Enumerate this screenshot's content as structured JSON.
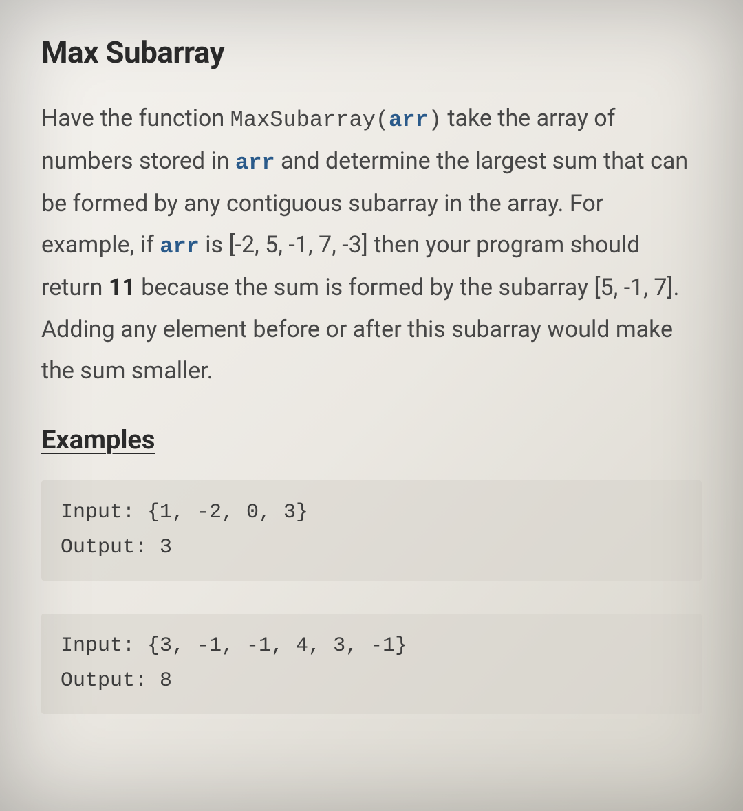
{
  "title": "Max Subarray",
  "description": {
    "pre1": "Have the function ",
    "func_name": "MaxSubarray",
    "func_paren_open": "(",
    "func_arg": "arr",
    "func_paren_close": ")",
    "post1": " take the array of numbers stored in ",
    "arr1": "arr",
    "post2": " and determine the largest sum that can be formed by any contiguous subarray in the array. For example, if ",
    "arr2": "arr",
    "post3": " is [-2, 5, -1, 7, -3] then your program should return ",
    "bold_result": "11",
    "post4": " because the sum is formed by the subarray [5, -1, 7]. Adding any element before or after this subarray would make the sum smaller."
  },
  "examples_heading": "Examples",
  "examples": [
    {
      "input": "Input: {1, -2, 0, 3}",
      "output": "Output: 3"
    },
    {
      "input": "Input: {3, -1, -1, 4, 3, -1}",
      "output": "Output: 8"
    }
  ],
  "colors": {
    "background_start": "#f5f3ef",
    "background_end": "#d8d5cc",
    "text": "#3a3a3a",
    "heading": "#2b2b2b",
    "keyword": "#2a5a8a",
    "code_block_bg": "#d7d4cc"
  },
  "typography": {
    "title_fontsize": 44,
    "body_fontsize": 34,
    "code_inline_fontsize": 32,
    "examples_heading_fontsize": 38,
    "code_block_fontsize": 30,
    "body_font": "sans-serif",
    "code_font": "monospace"
  }
}
